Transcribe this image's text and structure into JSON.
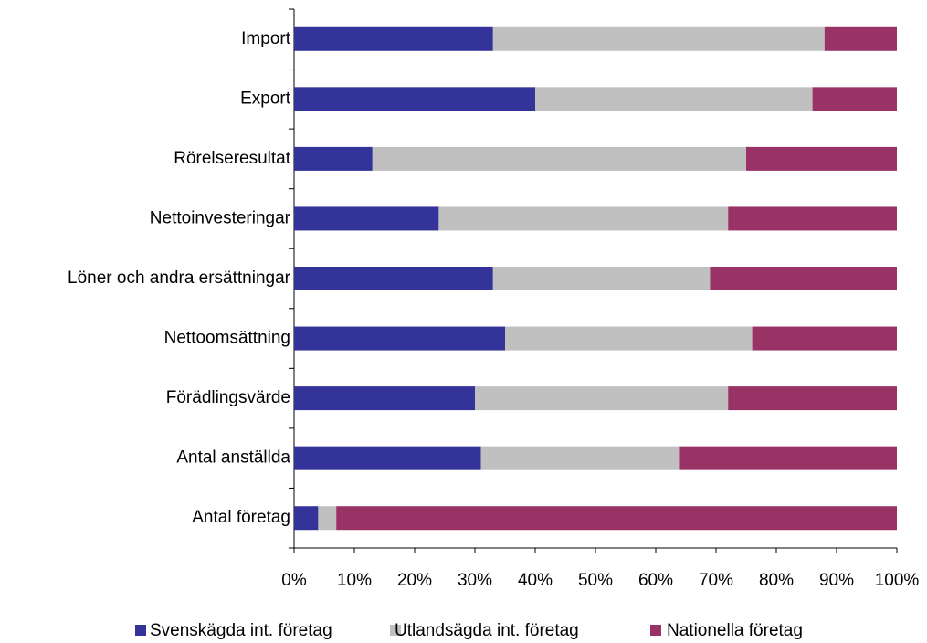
{
  "chart_data": {
    "type": "stacked-bar-horizontal",
    "categories": [
      "Import",
      "Export",
      "Rörelseresultat",
      "Nettoinvesteringar",
      "Löner och andra ersättningar",
      "Nettoomsättning",
      "Förädlingsvärde",
      "Antal anställda",
      "Antal företag"
    ],
    "series": [
      {
        "name": "Svenskägda int. företag",
        "color": "#333399",
        "values": [
          33,
          40,
          13,
          24,
          33,
          35,
          30,
          31,
          4
        ]
      },
      {
        "name": "Utlandsägda int. företag",
        "color": "#c0c0c0",
        "values": [
          55,
          46,
          62,
          48,
          36,
          41,
          42,
          33,
          3
        ]
      },
      {
        "name": "Nationella företag",
        "color": "#993366",
        "values": [
          12,
          14,
          25,
          28,
          31,
          24,
          28,
          36,
          93
        ]
      }
    ],
    "xlim": [
      0,
      100
    ],
    "xticks": [
      {
        "value": 0,
        "label": "0%"
      },
      {
        "value": 10,
        "label": "10%"
      },
      {
        "value": 20,
        "label": "20%"
      },
      {
        "value": 30,
        "label": "30%"
      },
      {
        "value": 40,
        "label": "40%"
      },
      {
        "value": 50,
        "label": "50%"
      },
      {
        "value": 60,
        "label": "60%"
      },
      {
        "value": 70,
        "label": "70%"
      },
      {
        "value": 80,
        "label": "80%"
      },
      {
        "value": 90,
        "label": "90%"
      },
      {
        "value": 100,
        "label": "100%"
      }
    ],
    "legend": "bottom"
  }
}
